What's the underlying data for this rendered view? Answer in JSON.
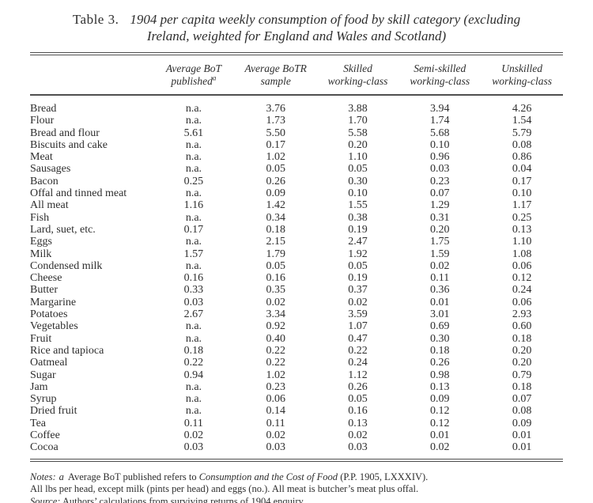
{
  "page": {
    "background": "#ffffff",
    "text_color": "#2e2e2e",
    "rule_color": "#4f4f4f"
  },
  "title": {
    "label": "Table 3.",
    "line1": "1904 per capita weekly consumption of food by skill category (excluding",
    "line2": "Ireland, weighted for England and Wales and Scotland)"
  },
  "table": {
    "columns": [
      {
        "line1": "",
        "line2": ""
      },
      {
        "line1": "Average BoT",
        "line2": "published",
        "note_marker": "a"
      },
      {
        "line1": "Average BoTR",
        "line2": "sample"
      },
      {
        "line1": "Skilled",
        "line2": "working-class"
      },
      {
        "line1": "Semi-skilled",
        "line2": "working-class"
      },
      {
        "line1": "Unskilled",
        "line2": "working-class"
      }
    ],
    "rows": [
      {
        "food": "Bread",
        "values": [
          "n.a.",
          "3.76",
          "3.88",
          "3.94",
          "4.26"
        ]
      },
      {
        "food": "Flour",
        "values": [
          "n.a.",
          "1.73",
          "1.70",
          "1.74",
          "1.54"
        ]
      },
      {
        "food": "Bread and flour",
        "values": [
          "5.61",
          "5.50",
          "5.58",
          "5.68",
          "5.79"
        ]
      },
      {
        "food": "Biscuits and cake",
        "values": [
          "n.a.",
          "0.17",
          "0.20",
          "0.10",
          "0.08"
        ]
      },
      {
        "food": "Meat",
        "values": [
          "n.a.",
          "1.02",
          "1.10",
          "0.96",
          "0.86"
        ]
      },
      {
        "food": "Sausages",
        "values": [
          "n.a.",
          "0.05",
          "0.05",
          "0.03",
          "0.04"
        ]
      },
      {
        "food": "Bacon",
        "values": [
          "0.25",
          "0.26",
          "0.30",
          "0.23",
          "0.17"
        ]
      },
      {
        "food": "Offal and tinned meat",
        "values": [
          "n.a.",
          "0.09",
          "0.10",
          "0.07",
          "0.10"
        ]
      },
      {
        "food": "All meat",
        "values": [
          "1.16",
          "1.42",
          "1.55",
          "1.29",
          "1.17"
        ]
      },
      {
        "food": "Fish",
        "values": [
          "n.a.",
          "0.34",
          "0.38",
          "0.31",
          "0.25"
        ]
      },
      {
        "food": "Lard, suet, etc.",
        "values": [
          "0.17",
          "0.18",
          "0.19",
          "0.20",
          "0.13"
        ]
      },
      {
        "food": "Eggs",
        "values": [
          "n.a.",
          "2.15",
          "2.47",
          "1.75",
          "1.10"
        ]
      },
      {
        "food": "Milk",
        "values": [
          "1.57",
          "1.79",
          "1.92",
          "1.59",
          "1.08"
        ]
      },
      {
        "food": "Condensed milk",
        "values": [
          "n.a.",
          "0.05",
          "0.05",
          "0.02",
          "0.06"
        ]
      },
      {
        "food": "Cheese",
        "values": [
          "0.16",
          "0.16",
          "0.19",
          "0.11",
          "0.12"
        ]
      },
      {
        "food": "Butter",
        "values": [
          "0.33",
          "0.35",
          "0.37",
          "0.36",
          "0.24"
        ]
      },
      {
        "food": "Margarine",
        "values": [
          "0.03",
          "0.02",
          "0.02",
          "0.01",
          "0.06"
        ]
      },
      {
        "food": "Potatoes",
        "values": [
          "2.67",
          "3.34",
          "3.59",
          "3.01",
          "2.93"
        ]
      },
      {
        "food": "Vegetables",
        "values": [
          "n.a.",
          "0.92",
          "1.07",
          "0.69",
          "0.60"
        ]
      },
      {
        "food": "Fruit",
        "values": [
          "n.a.",
          "0.40",
          "0.47",
          "0.30",
          "0.18"
        ]
      },
      {
        "food": "Rice and tapioca",
        "values": [
          "0.18",
          "0.22",
          "0.22",
          "0.18",
          "0.20"
        ]
      },
      {
        "food": "Oatmeal",
        "values": [
          "0.22",
          "0.22",
          "0.24",
          "0.26",
          "0.20"
        ]
      },
      {
        "food": "Sugar",
        "values": [
          "0.94",
          "1.02",
          "1.12",
          "0.98",
          "0.79"
        ]
      },
      {
        "food": "Jam",
        "values": [
          "n.a.",
          "0.23",
          "0.26",
          "0.13",
          "0.18"
        ]
      },
      {
        "food": "Syrup",
        "values": [
          "n.a.",
          "0.06",
          "0.05",
          "0.09",
          "0.07"
        ]
      },
      {
        "food": "Dried fruit",
        "values": [
          "n.a.",
          "0.14",
          "0.16",
          "0.12",
          "0.08"
        ]
      },
      {
        "food": "Tea",
        "values": [
          "0.11",
          "0.11",
          "0.13",
          "0.12",
          "0.09"
        ]
      },
      {
        "food": "Coffee",
        "values": [
          "0.02",
          "0.02",
          "0.02",
          "0.01",
          "0.01"
        ]
      },
      {
        "food": "Cocoa",
        "values": [
          "0.03",
          "0.03",
          "0.03",
          "0.02",
          "0.01"
        ]
      }
    ]
  },
  "notes": {
    "label": "Notes:",
    "marker": "a",
    "text_before_italic": "Average BoT published refers to ",
    "italic_title": "Consumption and the Cost of Food",
    "text_after_italic": " (P.P. 1905, LXXXIV).",
    "line2": "All lbs per head, except milk (pints per head) and eggs (no.). All meat is butcher’s meat plus offal.",
    "source_label": "Source:",
    "source_text": " Authors’ calculations from surviving returns of 1904 enquiry."
  }
}
